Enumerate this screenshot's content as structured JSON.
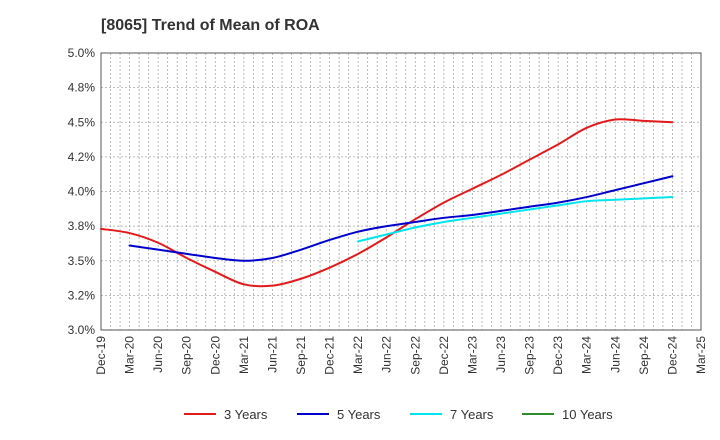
{
  "chart_data": {
    "type": "line",
    "title": "[8065]  Trend of Mean of ROA",
    "xlabel": "",
    "ylabel": "",
    "ylim": [
      3.0,
      5.0
    ],
    "yticks": [
      "3.0%",
      "3.2%",
      "3.5%",
      "3.8%",
      "4.0%",
      "4.2%",
      "4.5%",
      "4.8%",
      "5.0%"
    ],
    "ytick_values": [
      3.0,
      3.25,
      3.5,
      3.75,
      4.0,
      4.25,
      4.5,
      4.75,
      5.0
    ],
    "categories": [
      "Dec-19",
      "Mar-20",
      "Jun-20",
      "Sep-20",
      "Dec-20",
      "Mar-21",
      "Jun-21",
      "Sep-21",
      "Dec-21",
      "Mar-22",
      "Jun-22",
      "Sep-22",
      "Dec-22",
      "Mar-23",
      "Jun-23",
      "Sep-23",
      "Dec-23",
      "Mar-24",
      "Jun-24",
      "Sep-24",
      "Dec-24",
      "Mar-25"
    ],
    "grid": true,
    "legend_position": "bottom",
    "series": [
      {
        "name": "3 Years",
        "color": "#e31a1c",
        "values": [
          3.73,
          3.7,
          3.63,
          3.52,
          3.42,
          3.33,
          3.32,
          3.37,
          3.45,
          3.55,
          3.67,
          3.8,
          3.92,
          4.02,
          4.12,
          4.23,
          4.34,
          4.46,
          4.52,
          4.51,
          4.5,
          null
        ]
      },
      {
        "name": "5 Years",
        "color": "#0000cc",
        "values": [
          null,
          3.61,
          3.58,
          3.55,
          3.52,
          3.5,
          3.52,
          3.58,
          3.65,
          3.71,
          3.75,
          3.78,
          3.81,
          3.83,
          3.86,
          3.89,
          3.92,
          3.96,
          4.01,
          4.06,
          4.11,
          null
        ]
      },
      {
        "name": "7 Years",
        "color": "#00e5ee",
        "values": [
          null,
          null,
          null,
          null,
          null,
          null,
          null,
          null,
          null,
          3.64,
          3.69,
          3.74,
          3.78,
          3.81,
          3.84,
          3.87,
          3.9,
          3.93,
          3.94,
          3.95,
          3.96,
          null
        ]
      },
      {
        "name": "10 Years",
        "color": "#2e8b2e",
        "values": [
          null,
          null,
          null,
          null,
          null,
          null,
          null,
          null,
          null,
          null,
          null,
          null,
          null,
          null,
          null,
          null,
          null,
          null,
          null,
          null,
          null,
          null
        ]
      }
    ]
  }
}
